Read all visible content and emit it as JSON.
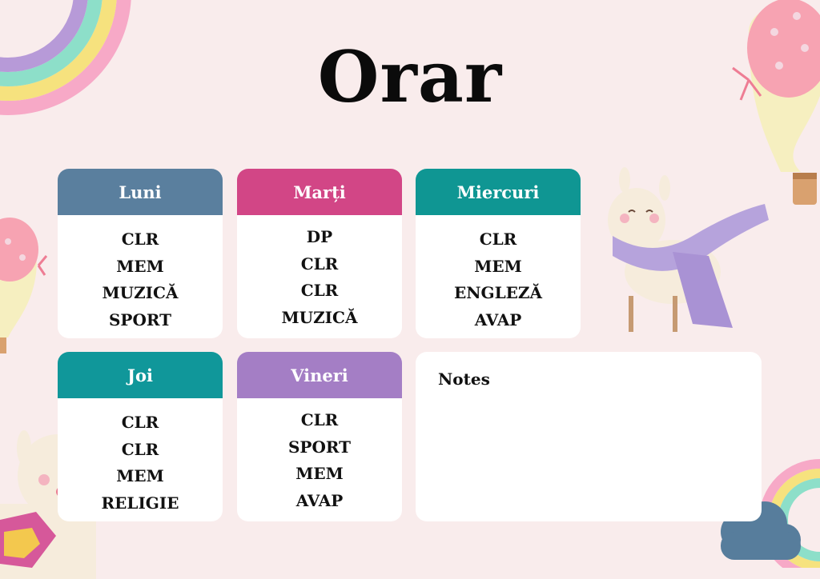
{
  "title": "Orar",
  "days": [
    {
      "name": "Luni",
      "color": "#5a7f9e",
      "subjects": [
        "CLR",
        "MEM",
        "MUZICĂ",
        "SPORT"
      ]
    },
    {
      "name": "Marți",
      "color": "#d24686",
      "subjects": [
        "DP",
        "CLR",
        "CLR",
        "MUZICĂ"
      ]
    },
    {
      "name": "Miercuri",
      "color": "#0f9693",
      "subjects": [
        "CLR",
        "MEM",
        "ENGLEZĂ",
        "AVAP"
      ]
    },
    {
      "name": "Joi",
      "color": "#10979a",
      "subjects": [
        "CLR",
        "CLR",
        "MEM",
        "RELIGIE"
      ]
    },
    {
      "name": "Vineri",
      "color": "#a47ec5",
      "subjects": [
        "CLR",
        "SPORT",
        "MEM",
        "AVAP"
      ]
    }
  ],
  "notes": {
    "label": "Notes"
  },
  "decorations": [
    "rainbow-icon",
    "hot-air-balloon-icon",
    "llama-with-scarf-icon",
    "llama-icon",
    "cloud-rainbow-icon"
  ]
}
